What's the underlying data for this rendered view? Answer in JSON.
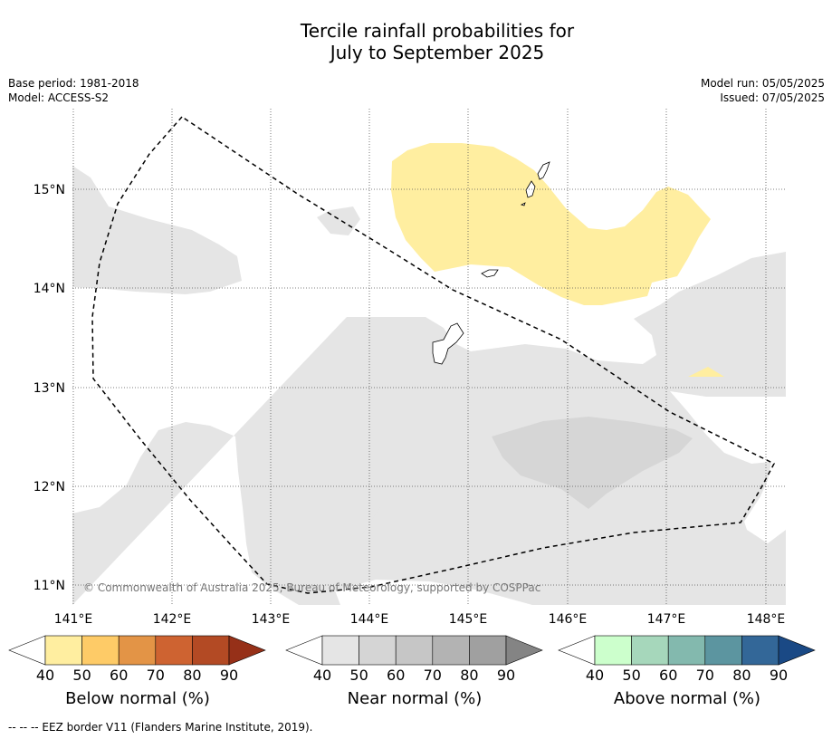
{
  "title_line1": "Tercile rainfall probabilities for",
  "title_line2": "July to September 2025",
  "base_period": "Base period: 1981-2018",
  "model": "Model: ACCESS-S2",
  "model_run": "Model run: 05/05/2025",
  "issued": "Issued: 07/05/2025",
  "copyright": "© Commonwealth of Australia 2025, Bureau of Meteorology, supported by COSPPac",
  "footnote": "--  --  -- EEZ border V11 (Flanders Marine Institute, 2019).",
  "map": {
    "lon_ticks": [
      "141°E",
      "142°E",
      "143°E",
      "144°E",
      "145°E",
      "146°E",
      "147°E",
      "148°E"
    ],
    "lat_ticks": [
      "15°N",
      "14°N",
      "13°N",
      "12°N",
      "11°N"
    ]
  },
  "colorbars": [
    {
      "name": "below",
      "label": "Below normal (%)",
      "ticks": [
        "40",
        "50",
        "60",
        "70",
        "80",
        "90"
      ],
      "colors": [
        "#ffffff",
        "#ffeea0",
        "#fecb67",
        "#e39446",
        "#ce6331",
        "#b34a24",
        "#963018"
      ]
    },
    {
      "name": "near",
      "label": "Near normal (%)",
      "ticks": [
        "40",
        "50",
        "60",
        "70",
        "80",
        "90"
      ],
      "colors": [
        "#ffffff",
        "#e5e5e5",
        "#d5d5d5",
        "#c6c6c6",
        "#b3b3b3",
        "#a0a0a0",
        "#848484"
      ]
    },
    {
      "name": "above",
      "label": "Above normal (%)",
      "ticks": [
        "40",
        "50",
        "60",
        "70",
        "80",
        "90"
      ],
      "colors": [
        "#ffffff",
        "#ccffcc",
        "#a6d7bb",
        "#83b9ae",
        "#5c95a0",
        "#336798",
        "#1a4985"
      ]
    }
  ],
  "shading": {
    "near_40_50": "#e5e5e5",
    "near_50_60": "#d6d6d6",
    "below_40_50": "#ffeea0"
  }
}
